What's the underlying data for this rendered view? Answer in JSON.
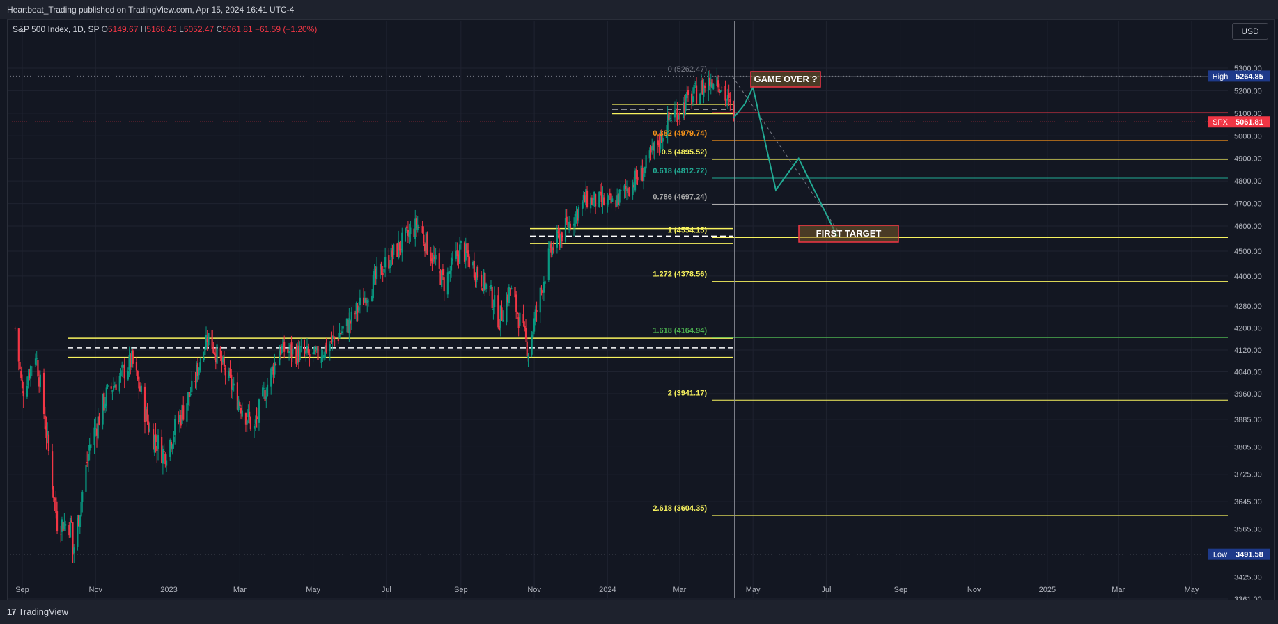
{
  "header": {
    "publish_line": "Heartbeat_Trading published on TradingView.com, Apr 15, 2024 16:41 UTC-4"
  },
  "legend": {
    "symbol": "S&P 500 Index, 1D, SP",
    "o_label": "O",
    "o_value": "5149.67",
    "h_label": "H",
    "h_value": "5168.43",
    "l_label": "L",
    "l_value": "5052.47",
    "c_label": "C",
    "c_value": "5061.81",
    "change": "−61.59 (−1.20%)"
  },
  "currency_button": "USD",
  "footer": {
    "brand": "TradingView"
  },
  "colors": {
    "background": "#131722",
    "up": "#089981",
    "down": "#f23645",
    "fib": "#f7f25e",
    "projection": "#22ab94"
  },
  "chart_data": {
    "type": "candlestick",
    "ylim": [
      3361,
      5365
    ],
    "y_ticks": [
      "5300.00",
      "5200.00",
      "5100.00",
      "5000.00",
      "4900.00",
      "4800.00",
      "4700.00",
      "4600.00",
      "4500.00",
      "4400.00",
      "4280.00",
      "4200.00",
      "4120.00",
      "4040.00",
      "3960.00",
      "3885.00",
      "3805.00",
      "3725.00",
      "3645.00",
      "3565.00",
      "3425.00",
      "3361.00"
    ],
    "x_ticks": [
      "Sep",
      "Nov",
      "2023",
      "Mar",
      "May",
      "Jul",
      "Sep",
      "Nov",
      "2024",
      "Mar",
      "May",
      "Jul",
      "Sep",
      "Nov",
      "2025",
      "Mar",
      "May"
    ],
    "price_path": [
      [
        "2022-08-26",
        4199
      ],
      [
        "2022-09-01",
        3966
      ],
      [
        "2022-09-12",
        4110
      ],
      [
        "2022-09-30",
        3585
      ],
      [
        "2022-10-12",
        3577
      ],
      [
        "2022-10-13",
        3491.58
      ],
      [
        "2022-10-27",
        3807
      ],
      [
        "2022-11-10",
        3956
      ],
      [
        "2022-12-01",
        4080
      ],
      [
        "2022-12-16",
        3852
      ],
      [
        "2022-12-28",
        3783
      ],
      [
        "2023-01-20",
        3972
      ],
      [
        "2023-02-02",
        4179
      ],
      [
        "2023-02-24",
        3970
      ],
      [
        "2023-03-13",
        3855
      ],
      [
        "2023-04-03",
        4124
      ],
      [
        "2023-05-03",
        4090
      ],
      [
        "2023-06-01",
        4221
      ],
      [
        "2023-06-30",
        4450
      ],
      [
        "2023-07-27",
        4607
      ],
      [
        "2023-08-18",
        4370
      ],
      [
        "2023-09-01",
        4515
      ],
      [
        "2023-09-25",
        4337
      ],
      [
        "2023-10-03",
        4229
      ],
      [
        "2023-10-12",
        4349
      ],
      [
        "2023-10-27",
        4117
      ],
      [
        "2023-11-14",
        4495
      ],
      [
        "2023-12-14",
        4719
      ],
      [
        "2024-01-05",
        4697
      ],
      [
        "2024-01-31",
        4845
      ],
      [
        "2024-02-23",
        5088
      ],
      [
        "2024-03-28",
        5254
      ],
      [
        "2024-04-01",
        5264.85
      ],
      [
        "2024-04-12",
        5123
      ],
      [
        "2024-04-15",
        5061.81
      ]
    ],
    "fib_levels": [
      {
        "label": "0 (5262.47)",
        "value": 5262.47
      },
      {
        "label": "0.382 (4979.74)",
        "value": 4979.74
      },
      {
        "label": "0.5 (4895.52)",
        "value": 4895.52
      },
      {
        "label": "0.618 (4812.72)",
        "value": 4812.72
      },
      {
        "label": "0.786 (4697.24)",
        "value": 4697.24
      },
      {
        "label": "1 (4554.15)",
        "value": 4554.15
      },
      {
        "label": "1.272 (4378.56)",
        "value": 4378.56
      },
      {
        "label": "1.618 (4164.94)",
        "value": 4164.94
      },
      {
        "label": "2 (3941.17)",
        "value": 3941.17
      },
      {
        "label": "2.618 (3604.35)",
        "value": 3604.35
      }
    ],
    "price_tags": [
      {
        "label": "High",
        "value": "5264.85"
      },
      {
        "label": "SPX",
        "value": "5061.81"
      },
      {
        "label": "Low",
        "value": "3491.58"
      }
    ],
    "annotations": [
      "GAME OVER ?",
      "FIRST TARGET"
    ],
    "projection_path": [
      [
        "2024-04-15",
        5080
      ],
      [
        "2024-04-24",
        5140
      ],
      [
        "2024-05-01",
        5215
      ],
      [
        "2024-05-20",
        4760
      ],
      [
        "2024-06-08",
        4900
      ],
      [
        "2024-07-10",
        4560
      ]
    ]
  }
}
